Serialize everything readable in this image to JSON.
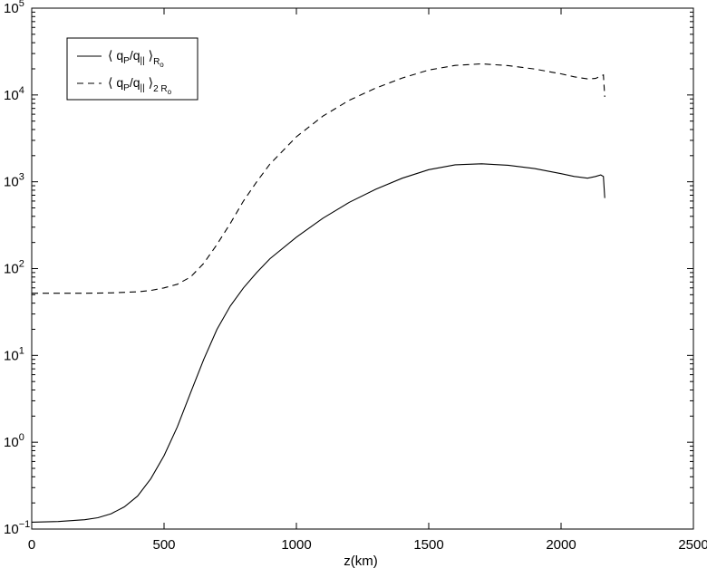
{
  "chart_data": {
    "type": "line",
    "title": "",
    "xlabel": "z(km)",
    "ylabel": "",
    "xlim": [
      0,
      2500
    ],
    "ylim": [
      0.1,
      100000
    ],
    "yscale": "log",
    "grid": false,
    "legend_position": "top-left",
    "x_ticks": [
      0,
      500,
      1000,
      1500,
      2000,
      2500
    ],
    "x_tick_labels": [
      "0",
      "500",
      "1000",
      "1500",
      "2000",
      "2500"
    ],
    "y_ticks": [
      {
        "value": 0.1,
        "base": "10",
        "exp": "−1"
      },
      {
        "value": 1,
        "base": "10",
        "exp": "0"
      },
      {
        "value": 10,
        "base": "10",
        "exp": "1"
      },
      {
        "value": 100,
        "base": "10",
        "exp": "2"
      },
      {
        "value": 1000,
        "base": "10",
        "exp": "3"
      },
      {
        "value": 10000,
        "base": "10",
        "exp": "4"
      },
      {
        "value": 100000,
        "base": "10",
        "exp": "5"
      }
    ],
    "series": [
      {
        "legend_parts": [
          "⟨ q",
          "P",
          "/q",
          "||",
          " ⟩",
          "R",
          "o"
        ],
        "style": "solid",
        "color": "#000000",
        "x": [
          0,
          100,
          200,
          250,
          300,
          350,
          400,
          450,
          500,
          550,
          600,
          650,
          700,
          750,
          800,
          850,
          900,
          1000,
          1100,
          1200,
          1300,
          1400,
          1500,
          1600,
          1700,
          1800,
          1900,
          2000,
          2050,
          2100,
          2130,
          2150,
          2160,
          2165
        ],
        "y": [
          0.12,
          0.122,
          0.128,
          0.135,
          0.15,
          0.18,
          0.24,
          0.38,
          0.7,
          1.5,
          3.7,
          9,
          20,
          37,
          60,
          90,
          130,
          230,
          380,
          580,
          820,
          1100,
          1380,
          1570,
          1610,
          1550,
          1420,
          1240,
          1150,
          1100,
          1150,
          1200,
          1150,
          650
        ]
      },
      {
        "legend_parts": [
          "⟨ q",
          "P",
          "/q",
          "||",
          " ⟩",
          "2 R",
          "o"
        ],
        "style": "dashed",
        "color": "#000000",
        "x": [
          0,
          100,
          200,
          300,
          400,
          450,
          500,
          550,
          600,
          650,
          700,
          750,
          800,
          850,
          900,
          1000,
          1100,
          1200,
          1300,
          1400,
          1500,
          1600,
          1700,
          1800,
          1900,
          2000,
          2050,
          2100,
          2130,
          2150,
          2160,
          2165
        ],
        "y": [
          52,
          52,
          52,
          52.5,
          54,
          56,
          60,
          66,
          80,
          115,
          190,
          330,
          600,
          1000,
          1600,
          3300,
          5700,
          8700,
          12000,
          15700,
          19400,
          21900,
          22800,
          21800,
          19900,
          17500,
          16200,
          15300,
          15500,
          16500,
          17000,
          9500
        ]
      }
    ]
  }
}
